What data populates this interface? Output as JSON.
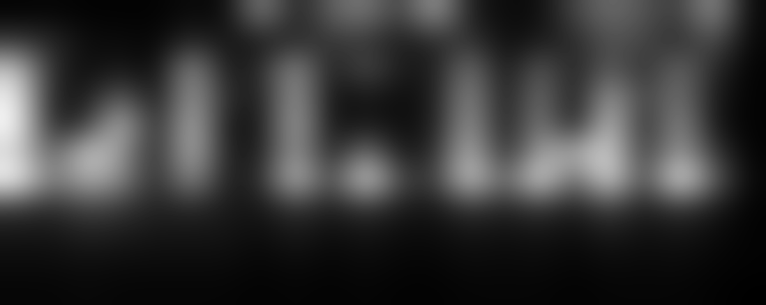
{
  "chart_data": {
    "type": "heatmap",
    "color": "gray",
    "tick_labels": false,
    "cells": [
      [
        0.02,
        0.03,
        0.02,
        0.02,
        0.02,
        0.05,
        0.03,
        0.5,
        0.1,
        0.35,
        0.45,
        0.2,
        0.6,
        0.1,
        0.05,
        0.05,
        0.25,
        0.4,
        0.3,
        0.2,
        0.55,
        0.03
      ],
      [
        0.2,
        0.15,
        0.05,
        0.05,
        0.03,
        0.15,
        0.08,
        0.1,
        0.15,
        0.2,
        0.2,
        0.1,
        0.15,
        0.2,
        0.05,
        0.1,
        0.15,
        0.3,
        0.25,
        0.15,
        0.3,
        0.03
      ],
      [
        0.7,
        0.15,
        0.05,
        0.1,
        0.03,
        0.55,
        0.08,
        0.15,
        0.55,
        0.08,
        0.3,
        0.1,
        0.1,
        0.45,
        0.05,
        0.35,
        0.1,
        0.35,
        0.15,
        0.4,
        0.15,
        0.02
      ],
      [
        0.85,
        0.1,
        0.1,
        0.35,
        0.05,
        0.6,
        0.15,
        0.1,
        0.6,
        0.05,
        0.1,
        0.05,
        0.1,
        0.55,
        0.05,
        0.45,
        0.05,
        0.6,
        0.2,
        0.45,
        0.1,
        0.02
      ],
      [
        0.9,
        0.1,
        0.2,
        0.7,
        0.08,
        0.7,
        0.08,
        0.08,
        0.65,
        0.05,
        0.1,
        0.05,
        0.1,
        0.6,
        0.05,
        0.5,
        0.05,
        0.75,
        0.1,
        0.55,
        0.08,
        0.02
      ],
      [
        0.75,
        0.3,
        0.75,
        0.55,
        0.1,
        0.7,
        0.1,
        0.1,
        0.6,
        0.08,
        0.45,
        0.08,
        0.15,
        0.7,
        0.1,
        0.6,
        0.6,
        0.8,
        0.15,
        0.6,
        0.2,
        0.02
      ],
      [
        0.9,
        0.4,
        0.65,
        0.5,
        0.12,
        0.55,
        0.1,
        0.15,
        0.75,
        0.2,
        0.85,
        0.25,
        0.2,
        0.8,
        0.3,
        0.85,
        0.3,
        0.85,
        0.2,
        0.9,
        0.35,
        0.03
      ],
      [
        0.2,
        0.15,
        0.25,
        0.2,
        0.12,
        0.15,
        0.1,
        0.08,
        0.2,
        0.1,
        0.2,
        0.1,
        0.08,
        0.2,
        0.12,
        0.2,
        0.1,
        0.25,
        0.1,
        0.2,
        0.1,
        0.02
      ],
      [
        0.08,
        0.08,
        0.12,
        0.1,
        0.08,
        0.08,
        0.08,
        0.05,
        0.1,
        0.05,
        0.08,
        0.05,
        0.05,
        0.08,
        0.06,
        0.08,
        0.05,
        0.1,
        0.06,
        0.08,
        0.05,
        0.02
      ],
      [
        0.05,
        0.05,
        0.06,
        0.05,
        0.05,
        0.05,
        0.05,
        0.03,
        0.05,
        0.03,
        0.05,
        0.03,
        0.03,
        0.05,
        0.04,
        0.05,
        0.03,
        0.05,
        0.04,
        0.05,
        0.03,
        0.02
      ],
      [
        0.03,
        0.03,
        0.04,
        0.03,
        0.03,
        0.03,
        0.03,
        0.02,
        0.03,
        0.02,
        0.03,
        0.02,
        0.02,
        0.03,
        0.03,
        0.03,
        0.02,
        0.03,
        0.03,
        0.03,
        0.02,
        0.01
      ]
    ]
  }
}
